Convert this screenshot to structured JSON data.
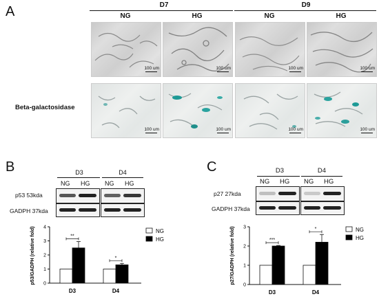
{
  "panelA": {
    "letter": "A",
    "days": [
      "D7",
      "D9"
    ],
    "groups": [
      "NG",
      "HG",
      "NG",
      "HG"
    ],
    "row_label": "Beta-galactosidase",
    "scale_label": "100 um"
  },
  "panelB": {
    "letter": "B",
    "days": [
      "D3",
      "D4"
    ],
    "lanes": [
      "NG",
      "HG",
      "NG",
      "HG"
    ],
    "blots": [
      "p53 53kda",
      "GADPH 37kda"
    ]
  },
  "panelC": {
    "letter": "C",
    "days": [
      "D3",
      "D4"
    ],
    "lanes": [
      "NG",
      "HG",
      "NG",
      "HG"
    ],
    "blots": [
      "p27 27kda",
      "GADPH 37kda"
    ]
  },
  "chart_data": [
    {
      "type": "bar",
      "categories": [
        "D3",
        "D4"
      ],
      "series": [
        {
          "name": "NG",
          "values": [
            1.0,
            1.0
          ],
          "color": "#ffffff"
        },
        {
          "name": "HG",
          "values": [
            2.5,
            1.3
          ],
          "errors": [
            0.45,
            0.1
          ],
          "color": "#000000"
        }
      ],
      "ylabel": "p53/GADPH (relative fold)",
      "ylim": [
        0,
        4
      ],
      "yticks": [
        "0",
        "1",
        "2",
        "3",
        "4"
      ],
      "significance": [
        "**",
        "*"
      ],
      "legend_position": "top-right"
    },
    {
      "type": "bar",
      "categories": [
        "D3",
        "D4"
      ],
      "series": [
        {
          "name": "NG",
          "values": [
            1.0,
            1.0
          ],
          "color": "#ffffff"
        },
        {
          "name": "HG",
          "values": [
            2.0,
            2.2
          ],
          "errors": [
            0.03,
            0.4
          ],
          "color": "#000000"
        }
      ],
      "ylabel": "p27/GADPH (relative fold)",
      "ylim": [
        0,
        3
      ],
      "yticks": [
        "0",
        "1",
        "2",
        "3"
      ],
      "significance": [
        "***",
        "*"
      ],
      "legend_position": "top-right"
    }
  ]
}
